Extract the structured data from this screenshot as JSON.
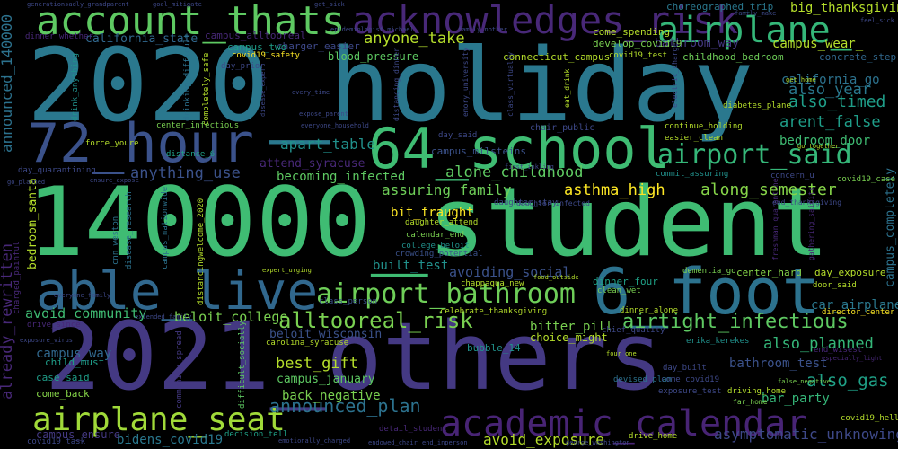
{
  "words": {
    "w01": {
      "text": "2020_holiday",
      "color": "#2a788e"
    },
    "w02": {
      "text": "140000_student",
      "color": "#3fbc73"
    },
    "w03": {
      "text": "2021_others",
      "color": "#443983"
    },
    "w04": {
      "text": "account_thats",
      "color": "#5ec962"
    },
    "w05": {
      "text": "acknowledges_risk",
      "color": "#482878"
    },
    "w06": {
      "text": "airplane_",
      "color": "#35b779"
    },
    "w07": {
      "text": "72_hour",
      "color": "#3b528b"
    },
    "w08": {
      "text": "64_school",
      "color": "#3fbc73"
    },
    "w09": {
      "text": "able_live",
      "color": "#31688e"
    },
    "w10": {
      "text": "6_foot",
      "color": "#2c728e"
    },
    "w11": {
      "text": "airplane_seat",
      "color": "#a0da39"
    },
    "w12": {
      "text": "academic_calendar",
      "color": "#482475"
    },
    "w13": {
      "text": "airport_bathroom",
      "color": "#6ece58"
    },
    "w14": {
      "text": "airport_said",
      "color": "#35b779"
    },
    "w15": {
      "text": "alltooreal_risk",
      "color": "#7ad151"
    },
    "w16": {
      "text": "airtight_infectious",
      "color": "#5ec962"
    },
    "w17": {
      "text": "anyone_take",
      "color": "#b5de2b"
    },
    "w18": {
      "text": "alone_childhood",
      "color": "#5ec962"
    },
    "w19": {
      "text": "anything_use",
      "color": "#3b528b"
    },
    "w20": {
      "text": "apart_table",
      "color": "#21918c"
    },
    "w21": {
      "text": "assuring_family",
      "color": "#6ece58"
    },
    "w22": {
      "text": "asthma_high",
      "color": "#fde725"
    },
    "w23": {
      "text": "along_semester",
      "color": "#86d549"
    },
    "w24": {
      "text": "announced_plan",
      "color": "#2c728e"
    },
    "w25": {
      "text": "avoid_exposure",
      "color": "#b5de2b"
    },
    "w26": {
      "text": "asymptomatic_unknowingly",
      "color": "#3e4989"
    },
    "w27": {
      "text": "also_gas",
      "color": "#1fa187"
    },
    "w28": {
      "text": "also_planned",
      "color": "#35b779"
    },
    "w29": {
      "text": "also_year",
      "color": "#2a788e"
    },
    "w30": {
      "text": "also_timed",
      "color": "#1f9e89"
    },
    "w31": {
      "text": "arent_false",
      "color": "#1f9e89"
    },
    "w32": {
      "text": "best_gift",
      "color": "#b5de2b"
    },
    "w33": {
      "text": "bathroom_way",
      "color": "#443983"
    },
    "w34": {
      "text": "announced_140000",
      "color": "#2c728e"
    },
    "w35": {
      "text": "already_rewritten",
      "color": "#482878"
    },
    "w36": {
      "text": "avoid_community",
      "color": "#3fbc73"
    },
    "w37": {
      "text": "beloit_college",
      "color": "#7ad151"
    },
    "w38": {
      "text": "avoiding_social",
      "color": "#3b528b"
    },
    "w39": {
      "text": "bit_fraught",
      "color": "#fde725"
    },
    "w40": {
      "text": "built_test",
      "color": "#21918c"
    },
    "w41": {
      "text": "bedroom_door",
      "color": "#3fbc73"
    },
    "w42": {
      "text": "becoming_infected",
      "color": "#5ec962"
    },
    "w43": {
      "text": "attend_syracuse",
      "color": "#482878"
    },
    "w44": {
      "text": "back_negative",
      "color": "#7ad151"
    },
    "w45": {
      "text": "bidens_covid19",
      "color": "#2a788e"
    },
    "w46": {
      "text": "bar_party",
      "color": "#35b779"
    },
    "w47": {
      "text": "bathroom_test",
      "color": "#3b528b"
    },
    "w48": {
      "text": "campus_way",
      "color": "#31688e"
    },
    "w49": {
      "text": "campus_wear_",
      "color": "#b5de2b"
    },
    "w50": {
      "text": "california_go",
      "color": "#2c728e"
    },
    "w51": {
      "text": "big_thanksgiving",
      "color": "#b5de2b"
    },
    "w52": {
      "text": "california_state",
      "color": "#31688e"
    },
    "w53": {
      "text": "bedroom_santa",
      "color": "#b5de2b"
    },
    "w54": {
      "text": "beloit_wisconsin",
      "color": "#3b528b"
    },
    "w55": {
      "text": "campus_january",
      "color": "#5ec962"
    },
    "w56": {
      "text": "car_airplane",
      "color": "#2a788e"
    },
    "w57": {
      "text": "campus_completely",
      "color": "#2c728e"
    },
    "w58": {
      "text": "case_said",
      "color": "#1f9e89"
    },
    "w59": {
      "text": "come_back",
      "color": "#86d549"
    },
    "w60": {
      "text": "child_must",
      "color": "#1f9e89"
    },
    "w61": {
      "text": "bitter_pill",
      "color": "#7ad151"
    },
    "w62": {
      "text": "choice_might",
      "color": "#b5de2b"
    },
    "w63": {
      "text": "also_wear",
      "color": "#482878"
    },
    "w64": {
      "text": "center_hard",
      "color": "#86d549"
    },
    "w65": {
      "text": "day_exposure",
      "color": "#b5de2b"
    },
    "w66": {
      "text": "bubble_14",
      "color": "#21918c"
    },
    "w67": {
      "text": "dinner_four",
      "color": "#1fa187"
    },
    "w68": {
      "text": "campus_ensure",
      "color": "#443983"
    },
    "w69": {
      "text": "campus_alltooreal",
      "color": "#482878"
    },
    "w70": {
      "text": "charger_easier",
      "color": "#3e4989"
    },
    "w71": {
      "text": "come_spending",
      "color": "#b5de2b"
    },
    "w72": {
      "text": "develop_covid19",
      "color": "#7ad151"
    },
    "w73": {
      "text": "choreographed_trip",
      "color": "#2a788e"
    },
    "w74": {
      "text": "childhood_bedroom",
      "color": "#6ece58"
    },
    "w75": {
      "text": "concrete_step",
      "color": "#31688e"
    },
    "w76": {
      "text": "connecticut_campus",
      "color": "#b5de2b"
    },
    "w77": {
      "text": "blood_pressure",
      "color": "#5ec962"
    },
    "w78": {
      "text": "campus_two",
      "color": "#1f9e89"
    },
    "w79": {
      "text": "campus_milsteins",
      "color": "#3b528b"
    },
    "w80": {
      "text": "dinner_whether",
      "color": "#482878"
    },
    "w81": {
      "text": "generationsadly_grandparent",
      "color": "#3e4989"
    },
    "w82": {
      "text": "goal_mitigate",
      "color": "#3e4989"
    },
    "w83": {
      "text": "get_sick",
      "color": "#3e4989"
    },
    "w84": {
      "text": "feel_sick",
      "color": "#3e4989"
    },
    "w85": {
      "text": "family_make",
      "color": "#3e4989"
    },
    "w86": {
      "text": "covid19_safety",
      "color": "#fde725"
    },
    "w87": {
      "text": "day_prior",
      "color": "#3e4989"
    },
    "w88": {
      "text": "drink_anything",
      "color": "#21918c"
    },
    "w89": {
      "text": "drinking_difficult",
      "color": "#2c728e"
    },
    "w90": {
      "text": "completely_safe",
      "color": "#b5de2b"
    },
    "w91": {
      "text": "center_infectious",
      "color": "#7ad151"
    },
    "w92": {
      "text": "continue_holding",
      "color": "#b5de2b"
    },
    "w93": {
      "text": "easier_clean",
      "color": "#b5de2b"
    },
    "w94": {
      "text": "commit_assuring",
      "color": "#21918c"
    },
    "w95": {
      "text": "concern_u",
      "color": "#3e4989"
    },
    "w96": {
      "text": "covid19_case",
      "color": "#7ad151"
    },
    "w97": {
      "text": "day_quarantining",
      "color": "#3e4989"
    },
    "w98": {
      "text": "distance_6",
      "color": "#1fa187"
    },
    "w99": {
      "text": "ensure_expose",
      "color": "#3e4989"
    },
    "w100": {
      "text": "force_youre",
      "color": "#b5de2b"
    },
    "w101": {
      "text": "go_planned",
      "color": "#3e4989"
    },
    "w102": {
      "text": "disease_research",
      "color": "#2c728e"
    },
    "w103": {
      "text": "cnn_weston",
      "color": "#2c728e"
    },
    "w104": {
      "text": "daughter_attend",
      "color": "#b5de2b"
    },
    "w105": {
      "text": "calendar_end",
      "color": "#7ad151"
    },
    "w106": {
      "text": "college_beloit",
      "color": "#21918c"
    },
    "w107": {
      "text": "crowding_potential",
      "color": "#3b528b"
    },
    "w108": {
      "text": "class_person",
      "color": "#3b528b"
    },
    "w109": {
      "text": "expert_urging",
      "color": "#b5de2b"
    },
    "w110": {
      "text": "chappaqua_new",
      "color": "#b5de2b"
    },
    "w111": {
      "text": "food_outside",
      "color": "#b5de2b"
    },
    "w112": {
      "text": "clean_wet",
      "color": "#7ad151"
    },
    "w113": {
      "text": "dementia_go",
      "color": "#7ad151"
    },
    "w114": {
      "text": "door_said",
      "color": "#b5de2b"
    },
    "w115": {
      "text": "director_center",
      "color": "#fde725"
    },
    "w116": {
      "text": "drive_since",
      "color": "#482878"
    },
    "w117": {
      "text": "exposure_virus",
      "color": "#3e4989"
    },
    "w118": {
      "text": "extended_family",
      "color": "#3e4989"
    },
    "w119": {
      "text": "everyone_family",
      "color": "#3e4989"
    },
    "w120": {
      "text": "celebrate_thanksgiving",
      "color": "#b5de2b"
    },
    "w121": {
      "text": "erika_kerekes",
      "color": "#21918c"
    },
    "w122": {
      "text": "end_wisest",
      "color": "#482878"
    },
    "w123": {
      "text": "especially_light",
      "color": "#482878"
    },
    "w124": {
      "text": "exposure_test",
      "color": "#3e4989"
    },
    "w125": {
      "text": "day_built",
      "color": "#3e4989"
    },
    "w126": {
      "text": "come_covid19",
      "color": "#3e4989"
    },
    "w127": {
      "text": "false_negative",
      "color": "#7ad151"
    },
    "w128": {
      "text": "driving_home",
      "color": "#b5de2b"
    },
    "w129": {
      "text": "far_home",
      "color": "#7ad151"
    },
    "w130": {
      "text": "covid19_hell",
      "color": "#b5de2b"
    },
    "w131": {
      "text": "george_washington",
      "color": "#3e4989"
    },
    "w132": {
      "text": "covid19_task",
      "color": "#3e4989"
    },
    "w133": {
      "text": "decision_tell",
      "color": "#1fa187"
    },
    "w134": {
      "text": "emotionally_charged",
      "color": "#3e4989"
    },
    "w135": {
      "text": "endowed_chair",
      "color": "#3e4989"
    },
    "w136": {
      "text": "end_inperson",
      "color": "#3e4989"
    },
    "w137": {
      "text": "drive_home",
      "color": "#b5de2b"
    },
    "w138": {
      "text": "detail_student",
      "color": "#482878"
    },
    "w139": {
      "text": "devised_plan",
      "color": "#2c728e"
    },
    "w140": {
      "text": "four_one",
      "color": "#b5de2b"
    },
    "w141": {
      "text": "dinner_alone",
      "color": "#b5de2b"
    },
    "w142": {
      "text": "chief_quality",
      "color": "#3e4989"
    },
    "w143": {
      "text": "carolina_syracuse",
      "color": "#b5de2b"
    },
    "w144": {
      "text": "charged_painful",
      "color": "#482878"
    },
    "w145": {
      "text": "distancingwelcome_2020",
      "color": "#b5de2b"
    },
    "w146": {
      "text": "campus_nationwide",
      "color": "#2c728e"
    },
    "w147": {
      "text": "community_spread",
      "color": "#443983"
    },
    "w148": {
      "text": "difficult_socially",
      "color": "#5ec962"
    },
    "w149": {
      "text": "freshman_quarantine",
      "color": "#482878"
    },
    "w150": {
      "text": "gathering_saidits",
      "color": "#482878"
    },
    "w151": {
      "text": "disease_expert",
      "color": "#3e4989"
    },
    "w152": {
      "text": "every_time",
      "color": "#3e4989"
    },
    "w153": {
      "text": "expose_parent",
      "color": "#3e4989"
    },
    "w154": {
      "text": "everyone_household",
      "color": "#3e4989"
    },
    "w155": {
      "text": "distancing_dinner",
      "color": "#3e4989"
    },
    "w156": {
      "text": "emory_university",
      "color": "#3e4989"
    },
    "w157": {
      "text": "class_virtually",
      "color": "#3e4989"
    },
    "w158": {
      "text": "chair_public",
      "color": "#3e4989"
    },
    "w159": {
      "text": "day_said",
      "color": "#3e4989"
    },
    "w160": {
      "text": "eat_drink",
      "color": "#b5de2b"
    },
    "w161": {
      "text": "electric_charger",
      "color": "#3e4989"
    },
    "w162": {
      "text": "covid19_test",
      "color": "#b5de2b"
    },
    "w163": {
      "text": "epidemiologist_michael",
      "color": "#3e4989"
    },
    "w164": {
      "text": "family_nother",
      "color": "#3e4989"
    },
    "w165": {
      "text": "first_inkling",
      "color": "#3e4989"
    },
    "w166": {
      "text": "daughter_stay",
      "color": "#3e4989"
    },
    "w167": {
      "text": "daughter_infected",
      "color": "#3e4989"
    },
    "w168": {
      "text": "go_together",
      "color": "#b5de2b"
    },
    "w169": {
      "text": "end_thanksgiving",
      "color": "#3e4989"
    },
    "w170": {
      "text": "get_home",
      "color": "#b5de2b"
    },
    "w171": {
      "text": "diabetes_plane",
      "color": "#b5de2b"
    }
  }
}
